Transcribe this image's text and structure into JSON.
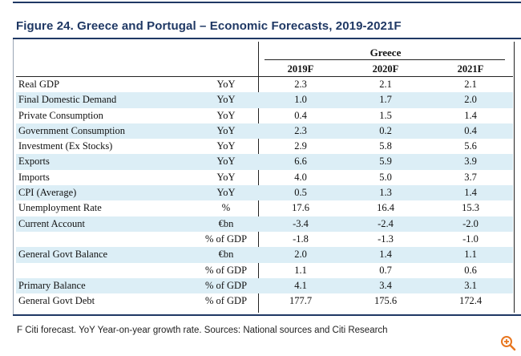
{
  "title": "Figure 24. Greece and Portugal – Economic Forecasts, 2019-2021F",
  "group_header": "Greece",
  "columns": [
    "2019F",
    "2020F",
    "2021F"
  ],
  "rows": [
    {
      "label": "Real GDP",
      "unit": "YoY",
      "values": [
        "2.3",
        "2.1",
        "2.1"
      ]
    },
    {
      "label": "Final Domestic Demand",
      "unit": "YoY",
      "values": [
        "1.0",
        "1.7",
        "2.0"
      ]
    },
    {
      "label": "Private Consumption",
      "unit": "YoY",
      "values": [
        "0.4",
        "1.5",
        "1.4"
      ]
    },
    {
      "label": "Government Consumption",
      "unit": "YoY",
      "values": [
        "2.3",
        "0.2",
        "0.4"
      ]
    },
    {
      "label": "Investment (Ex Stocks)",
      "unit": "YoY",
      "values": [
        "2.9",
        "5.8",
        "5.6"
      ]
    },
    {
      "label": "Exports",
      "unit": "YoY",
      "values": [
        "6.6",
        "5.9",
        "3.9"
      ]
    },
    {
      "label": "Imports",
      "unit": "YoY",
      "values": [
        "4.0",
        "5.0",
        "3.7"
      ]
    },
    {
      "label": "CPI (Average)",
      "unit": "YoY",
      "values": [
        "0.5",
        "1.3",
        "1.4"
      ]
    },
    {
      "label": "Unemployment Rate",
      "unit": "%",
      "values": [
        "17.6",
        "16.4",
        "15.3"
      ]
    },
    {
      "label": "Current Account",
      "unit": "€bn",
      "values": [
        "-3.4",
        "-2.4",
        "-2.0"
      ]
    },
    {
      "label": "",
      "unit": "% of GDP",
      "values": [
        "-1.8",
        "-1.3",
        "-1.0"
      ]
    },
    {
      "label": "General Govt Balance",
      "unit": "€bn",
      "values": [
        "2.0",
        "1.4",
        "1.1"
      ]
    },
    {
      "label": "",
      "unit": "% of GDP",
      "values": [
        "1.1",
        "0.7",
        "0.6"
      ]
    },
    {
      "label": "Primary Balance",
      "unit": "% of GDP",
      "values": [
        "4.1",
        "3.4",
        "3.1"
      ]
    },
    {
      "label": "General Govt Debt",
      "unit": "% of GDP",
      "values": [
        "177.7",
        "175.6",
        "172.4"
      ]
    }
  ],
  "footnote": "F Citi forecast. YoY Year-on-year growth rate. Sources: National sources and Citi Research",
  "zoom_icon": "zoom-in-icon"
}
